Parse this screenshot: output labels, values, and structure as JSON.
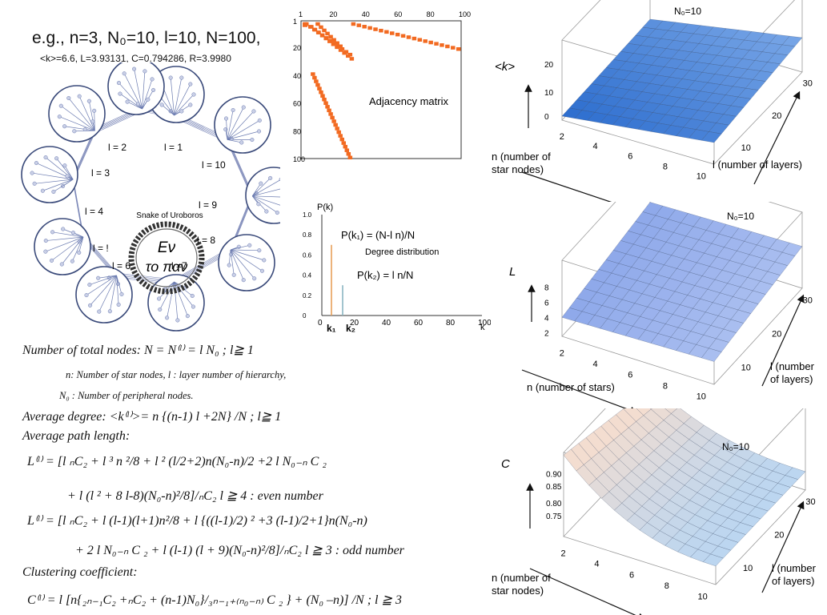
{
  "example": {
    "title": "e.g., n=3, N₀=10, l=10, N=100,",
    "stats": "<k>=6.6, L=3.93131, C=0.794286, R=3.9980"
  },
  "network": {
    "emblem_caption": "Snake of Uroboros",
    "emblem_text_1": "Eν",
    "emblem_text_2": "το παν",
    "layer_labels": [
      "l = 1",
      "l = 2",
      "l = 3",
      "l = 4",
      "l = !",
      "l = 6",
      "l =7",
      "l = 8",
      "l = 9",
      "l = 10"
    ]
  },
  "adjacency": {
    "label": "Adjacency matrix",
    "top_ticks": [
      "1",
      "20",
      "40",
      "60",
      "80",
      "100"
    ],
    "left_ticks": [
      "1",
      "20",
      "40",
      "60",
      "80",
      "100"
    ],
    "color": "#f26a21"
  },
  "degree": {
    "ylabel": "P(k)",
    "xlabel": "k",
    "title": "Degree distribution",
    "formula1": "P(k₁) = (N-l n)/N",
    "formula2": "P(k₂) = l n/N",
    "k1": "k₁",
    "k2": "k₂",
    "yticks": [
      "1.0",
      "0.8",
      "0.6",
      "0.4",
      "0.2",
      "0"
    ],
    "xticks": [
      "0",
      "20",
      "40",
      "60",
      "80",
      "100"
    ],
    "chart_data": {
      "type": "bar",
      "x": [
        6,
        13
      ],
      "values": [
        0.7,
        0.3
      ],
      "xlim": [
        0,
        100
      ],
      "ylim": [
        0,
        1.0
      ]
    }
  },
  "text_formulas": {
    "f1": "Number of total nodes:  N = N⁽ˡ⁾ = l N₀ ;      l≧ 1",
    "f2": "n: Number of star nodes,  l : layer number of hierarchy,",
    "f3": "N₀ : Number of peripheral nodes.",
    "f4": "Average degree:  <k⁽ˡ⁾>= n {(n-1) l +2N} /N  ;   l≧ 1",
    "f5": "Average path length:",
    "f6": "L⁽ˡ⁾ = [l ₙC₂ + l ³ n ²/8 + l ² (l/2+2)n(N₀-n)/2 +2 l N₀₋ₙ C ₂",
    "f7": "+ l (l ² + 8 l-8)(N₀-n)²/8]/ₙC₂          l  ≧ 4 : even number",
    "f8": "L⁽ˡ⁾ = [l ₙC₂ + l (l-1)(l+1)n²/8 + l {((l-1)/2) ² +3 (l-1)/2+1}n(N₀-n)",
    "f9": "+ 2 l N₀₋ₙ C ₂ + l (l-1) (l + 9)(N₀-n)²/8]/ₙC₂    l  ≧ 3 : odd number",
    "f10": "Clustering coefficient:",
    "f11": "C⁽ˡ⁾ = l [n{₂ₙ₋₁C₂ +ₙC₂ + (n-1)N₀}/₃ₙ₋₁₊₍ₙ₀₋ₙ₎ C ₂ }  + (N₀ –n)] /N ;      l ≧ 3"
  },
  "surface_k": {
    "n0": "N₀=10",
    "zlabel": "<k>",
    "zticks": [
      "0",
      "10",
      "20"
    ],
    "nticks": [
      "2",
      "4",
      "6",
      "8",
      "10"
    ],
    "lticks": [
      "10",
      "20",
      "30"
    ],
    "nlabel": "n (number of star nodes)",
    "llabel": "l (number of layers)",
    "color": "#3b86d8"
  },
  "surface_L": {
    "n0": "N₀=10",
    "zlabel": "L",
    "zticks": [
      "2",
      "4",
      "6",
      "8"
    ],
    "nticks": [
      "2",
      "4",
      "6",
      "8",
      "10"
    ],
    "lticks": [
      "10",
      "20",
      "30"
    ],
    "nlabel": "n (number of stars)",
    "llabel": "l (number of layers)",
    "color": "#9fb8ee"
  },
  "surface_C": {
    "n0": "N₀=10",
    "zlabel": "C",
    "zticks": [
      "0.90",
      "0.85",
      "0.80",
      "0.75"
    ],
    "nticks": [
      "2",
      "4",
      "6",
      "8",
      "10"
    ],
    "lticks": [
      "10",
      "20",
      "30"
    ],
    "nlabel": "n (number of star nodes)",
    "llabel": "l (number of layers)",
    "color": "#c9def1"
  }
}
